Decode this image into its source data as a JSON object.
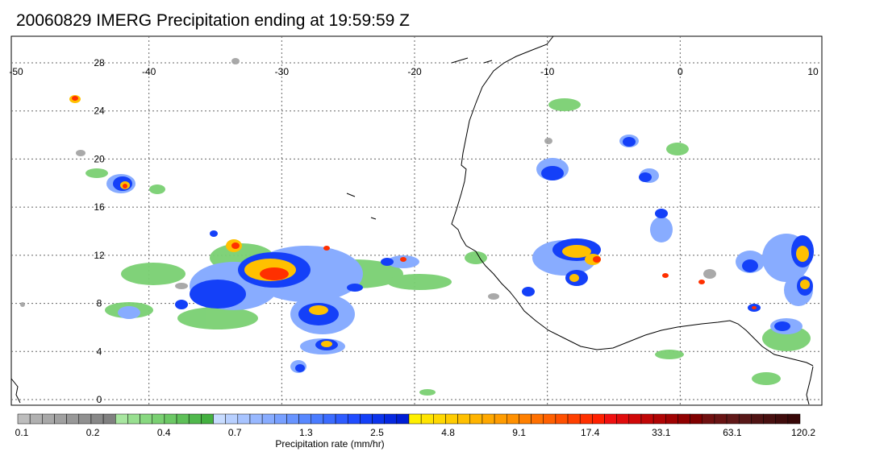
{
  "title": "20060829 IMERG Precipitation ending at 19:59:59 Z",
  "map": {
    "lon_range": [
      -50,
      10
    ],
    "lat_range": [
      -1,
      30
    ],
    "lon_ticks": [
      "-50",
      "-40",
      "-30",
      "-20",
      "-10",
      "0",
      "10"
    ],
    "lat_ticks": [
      "28",
      "24",
      "20",
      "16",
      "12",
      "8",
      "4",
      "0"
    ],
    "gridlines": "dotted"
  },
  "colorbar": {
    "units_label": "Precipitation rate (mm/hr)",
    "tick_labels": [
      "0.1",
      "0.2",
      "0.4",
      "0.7",
      "1.3",
      "2.5",
      "4.8",
      "9.1",
      "17.4",
      "33.1",
      "63.1",
      "120.2"
    ],
    "colors": [
      "#bdbdbd",
      "#b0b0b0",
      "#a8a8a8",
      "#a0a0a0",
      "#989898",
      "#909090",
      "#888888",
      "#808080",
      "#a8e6a0",
      "#98df90",
      "#88d880",
      "#7ad072",
      "#6cc865",
      "#5ec058",
      "#50b84c",
      "#44b040",
      "#c8dcff",
      "#b8d0ff",
      "#a8c4ff",
      "#98b8ff",
      "#88acff",
      "#78a0ff",
      "#6894ff",
      "#5888ff",
      "#4a7cff",
      "#3c6cff",
      "#2e5cff",
      "#204cff",
      "#1440f8",
      "#0c34ec",
      "#0628e0",
      "#001ed4",
      "#fff000",
      "#ffe400",
      "#ffd800",
      "#ffcc00",
      "#ffc000",
      "#ffb400",
      "#ffa800",
      "#ff9c00",
      "#ff9000",
      "#ff8000",
      "#ff7000",
      "#ff6000",
      "#ff5000",
      "#ff4000",
      "#ff3000",
      "#ff2000",
      "#f01010",
      "#e00c0c",
      "#d00808",
      "#c00606",
      "#b00404",
      "#a00202",
      "#900000",
      "#800000",
      "#701010",
      "#681414",
      "#601818",
      "#581818",
      "#501414",
      "#481010",
      "#400c0c",
      "#380808"
    ]
  }
}
